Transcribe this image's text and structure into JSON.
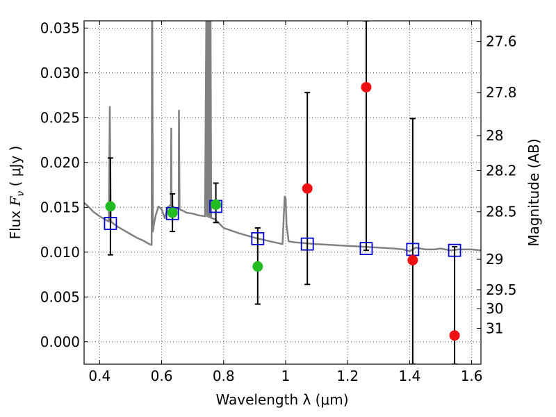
{
  "chart_data": {
    "type": "scatter",
    "xlabel": "Wavelength  λ (μm)",
    "ylabel": "Flux  F_ν  ( μJy )",
    "ylabel_parts": {
      "pre": "Flux  ",
      "sym": "F",
      "sub": "ν",
      "post": "  ( μJy )"
    },
    "y2label": "Magnitude (AB)",
    "xlim": [
      0.35,
      1.63
    ],
    "ylim": [
      -0.0025,
      0.0358
    ],
    "grid": true,
    "x_ticks": [
      {
        "value": 0.4,
        "label": "0.4"
      },
      {
        "value": 0.6,
        "label": "0.6"
      },
      {
        "value": 0.8,
        "label": "0.8"
      },
      {
        "value": 1.0,
        "label": "1"
      },
      {
        "value": 1.2,
        "label": "1.2"
      },
      {
        "value": 1.4,
        "label": "1.4"
      },
      {
        "value": 1.6,
        "label": "1.6"
      }
    ],
    "y_ticks": [
      {
        "value": 0.0,
        "label": "0.000"
      },
      {
        "value": 0.005,
        "label": "0.005"
      },
      {
        "value": 0.01,
        "label": "0.010"
      },
      {
        "value": 0.015,
        "label": "0.015"
      },
      {
        "value": 0.02,
        "label": "0.020"
      },
      {
        "value": 0.025,
        "label": "0.025"
      },
      {
        "value": 0.03,
        "label": "0.030"
      },
      {
        "value": 0.035,
        "label": "0.035"
      }
    ],
    "y2_ticks": [
      {
        "label": "27.6",
        "flux": 0.0335
      },
      {
        "label": "27.8",
        "flux": 0.0278
      },
      {
        "label": "28",
        "flux": 0.023
      },
      {
        "label": "28.2",
        "flux": 0.0191
      },
      {
        "label": "28.5",
        "flux": 0.0145
      },
      {
        "label": "29",
        "flux": 0.0092
      },
      {
        "label": "29.5",
        "flux": 0.0058
      },
      {
        "label": "30",
        "flux": 0.0037
      },
      {
        "label": "31",
        "flux": 0.0015
      }
    ],
    "colors": {
      "spectrum": "#808080",
      "model_marker": "#0000cc",
      "green": "#22bb22",
      "red": "#ee1111",
      "errorbar": "#000000",
      "grid": "#555555"
    },
    "spectrum": {
      "name": "",
      "x": [
        0.35,
        0.36,
        0.38,
        0.4,
        0.42,
        0.43,
        0.433,
        0.436,
        0.44,
        0.46,
        0.48,
        0.5,
        0.52,
        0.54,
        0.56,
        0.568,
        0.569,
        0.57,
        0.572,
        0.574,
        0.58,
        0.59,
        0.6,
        0.61,
        0.62,
        0.63,
        0.631,
        0.632,
        0.634,
        0.64,
        0.65,
        0.655,
        0.656,
        0.658,
        0.662,
        0.67,
        0.68,
        0.7,
        0.72,
        0.74,
        0.744,
        0.746,
        0.75,
        0.752,
        0.754,
        0.756,
        0.758,
        0.76,
        0.77,
        0.78,
        0.8,
        0.85,
        0.9,
        0.95,
        0.99,
        0.997,
        1.0,
        1.003,
        1.01,
        1.03,
        1.06,
        1.1,
        1.15,
        1.2,
        1.25,
        1.3,
        1.35,
        1.38,
        1.4,
        1.42,
        1.45,
        1.48,
        1.5,
        1.53,
        1.56,
        1.6,
        1.63
      ],
      "y": [
        0.0155,
        0.0152,
        0.0145,
        0.014,
        0.0136,
        0.0134,
        0.0262,
        0.0135,
        0.0133,
        0.0128,
        0.0124,
        0.012,
        0.0116,
        0.0113,
        0.0109,
        0.0108,
        0.036,
        0.036,
        0.0123,
        0.0128,
        0.014,
        0.0151,
        0.0148,
        0.0138,
        0.015,
        0.0153,
        0.0238,
        0.015,
        0.0152,
        0.015,
        0.0148,
        0.015,
        0.0258,
        0.0148,
        0.0147,
        0.0146,
        0.0144,
        0.0143,
        0.0141,
        0.014,
        0.036,
        0.014,
        0.036,
        0.0139,
        0.036,
        0.0139,
        0.036,
        0.0138,
        0.0137,
        0.0134,
        0.0127,
        0.0121,
        0.0116,
        0.0112,
        0.0109,
        0.0162,
        0.016,
        0.013,
        0.0112,
        0.0111,
        0.011,
        0.0109,
        0.0108,
        0.0107,
        0.0106,
        0.0105,
        0.0104,
        0.0103,
        0.0101,
        0.0105,
        0.0103,
        0.0103,
        0.0104,
        0.0102,
        0.0103,
        0.0103,
        0.0102
      ]
    },
    "model_points": {
      "name": "",
      "x": [
        0.435,
        0.635,
        0.775,
        0.91,
        1.07,
        1.26,
        1.41,
        1.545
      ],
      "y": [
        0.0132,
        0.0143,
        0.0151,
        0.0115,
        0.0109,
        0.0104,
        0.0103,
        0.0102
      ]
    },
    "green_points": {
      "name": "",
      "x": [
        0.435,
        0.635,
        0.775,
        0.91
      ],
      "y": [
        0.0151,
        0.0144,
        0.0153,
        0.0084
      ],
      "err_low": [
        0.0097,
        0.0123,
        0.0133,
        0.0042
      ],
      "err_high": [
        0.0205,
        0.0165,
        0.0177,
        0.0127
      ]
    },
    "red_points": {
      "name": "",
      "x": [
        1.07,
        1.26,
        1.41,
        1.545
      ],
      "y": [
        0.0171,
        0.0284,
        0.0091,
        0.0007
      ],
      "err_low": [
        0.0064,
        0.0102,
        -0.0025,
        -0.0025
      ],
      "err_high": [
        0.0278,
        0.0358,
        0.0249,
        0.0106
      ]
    }
  }
}
